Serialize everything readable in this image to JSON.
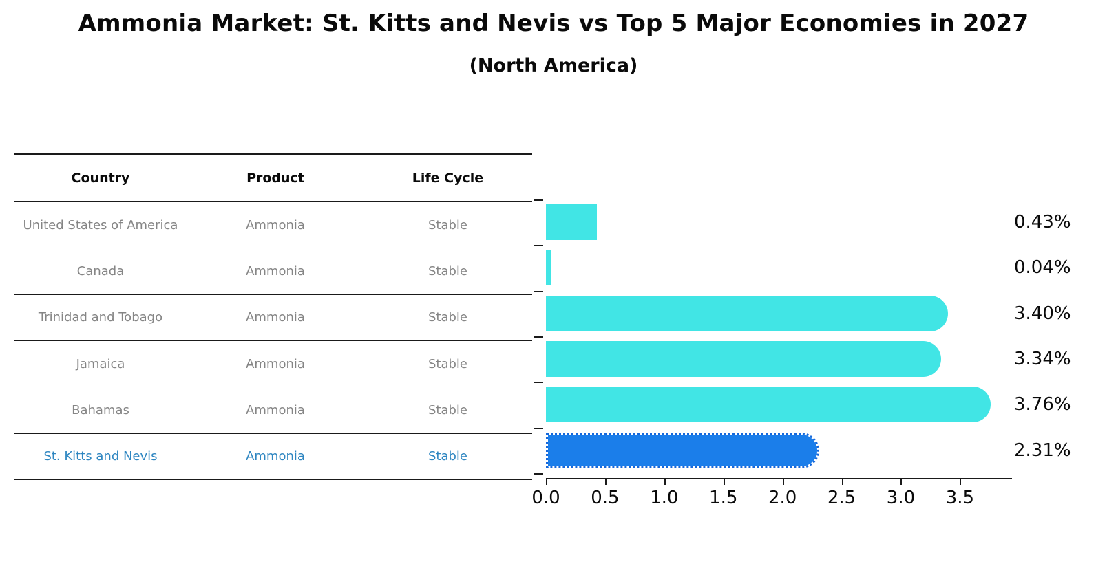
{
  "title": "Ammonia Market: St. Kitts and Nevis vs Top 5 Major Economies in 2027",
  "subtitle": "(North America)",
  "colors": {
    "bar_default": "#41E5E5",
    "bar_highlight": "#1B7EEA",
    "bar_highlight_border": "#1668DB",
    "highlight_text": "#2E86C1",
    "table_text": "#858585",
    "axis_text": "#0a0a0a"
  },
  "table": {
    "headers": [
      "Country",
      "Product",
      "Life Cycle"
    ],
    "rows": [
      {
        "country": "United States of America",
        "product": "Ammonia",
        "life_cycle": "Stable",
        "highlight": false
      },
      {
        "country": "Canada",
        "product": "Ammonia",
        "life_cycle": "Stable",
        "highlight": false
      },
      {
        "country": "Trinidad and Tobago",
        "product": "Ammonia",
        "life_cycle": "Stable",
        "highlight": false
      },
      {
        "country": "Jamaica",
        "product": "Ammonia",
        "life_cycle": "Stable",
        "highlight": false
      },
      {
        "country": "Bahamas",
        "product": "Ammonia",
        "life_cycle": "Stable",
        "highlight": false
      },
      {
        "country": "St. Kitts and Nevis",
        "product": "Ammonia",
        "life_cycle": "Stable",
        "highlight": true
      }
    ]
  },
  "chart_data": {
    "type": "bar",
    "orientation": "horizontal",
    "title": "Ammonia Market: St. Kitts and Nevis vs Top 5 Major Economies in 2027 (North America)",
    "categories": [
      "United States of America",
      "Canada",
      "Trinidad and Tobago",
      "Jamaica",
      "Bahamas",
      "St. Kitts and Nevis"
    ],
    "values": [
      0.43,
      0.04,
      3.4,
      3.34,
      3.76,
      2.31
    ],
    "value_labels": [
      "0.43%",
      "0.04%",
      "3.40%",
      "3.34%",
      "3.76%",
      "2.31%"
    ],
    "highlight_category": "St. Kitts and Nevis",
    "xlabel": "",
    "ylabel": "",
    "xlim": [
      0,
      3.94
    ],
    "xticks": [
      "0.0",
      "0.5",
      "1.0",
      "1.5",
      "2.0",
      "2.5",
      "3.0",
      "3.5"
    ],
    "grid": false,
    "legend": false
  }
}
